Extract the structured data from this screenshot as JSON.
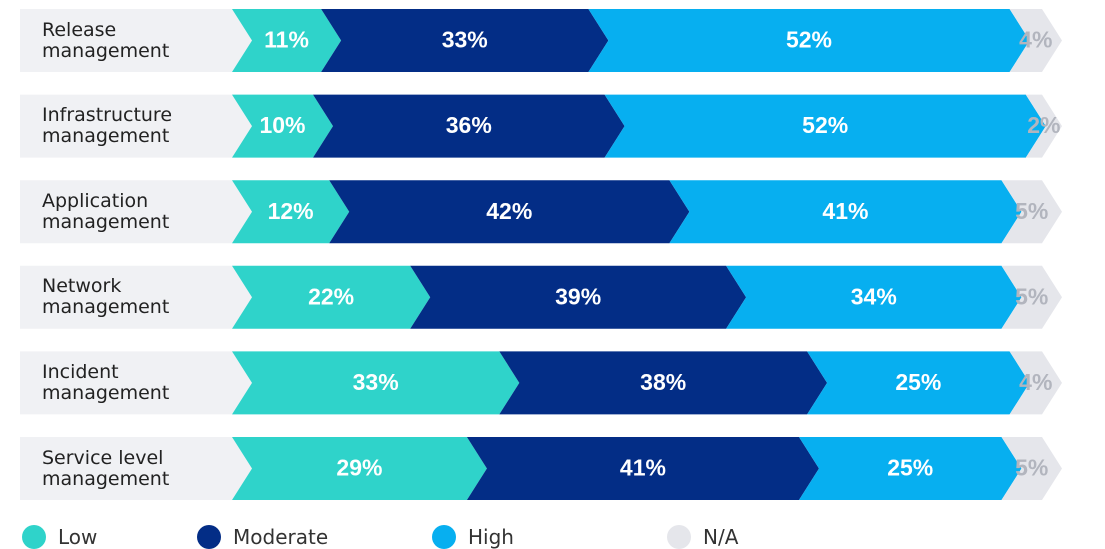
{
  "chart_data": {
    "type": "stacked-bar-horizontal",
    "categories": [
      "Release management",
      "Infrastructure management",
      "Application management",
      "Network management",
      "Incident management",
      "Service level management"
    ],
    "series": [
      {
        "name": "Low",
        "color": "#2fd3ca",
        "values": [
          11,
          10,
          12,
          22,
          33,
          29
        ],
        "value_labels": [
          "11%",
          "10%",
          "12%",
          "22%",
          "33%",
          "29%"
        ]
      },
      {
        "name": "Moderate",
        "color": "#032d86",
        "values": [
          33,
          36,
          42,
          39,
          38,
          41
        ],
        "value_labels": [
          "33%",
          "36%",
          "42%",
          "39%",
          "38%",
          "41%"
        ]
      },
      {
        "name": "High",
        "color": "#07aff0",
        "values": [
          52,
          52,
          41,
          34,
          25,
          25
        ],
        "value_labels": [
          "52%",
          "52%",
          "41%",
          "34%",
          "25%",
          "25%"
        ]
      },
      {
        "name": "N/A",
        "color": "#e5e6eb",
        "values": [
          4,
          2,
          5,
          5,
          4,
          5
        ],
        "value_labels": [
          "4%",
          "2%",
          "5%",
          "5%",
          "4%",
          "5%"
        ]
      }
    ],
    "xlim": [
      0,
      100
    ],
    "legend": "bottom"
  }
}
